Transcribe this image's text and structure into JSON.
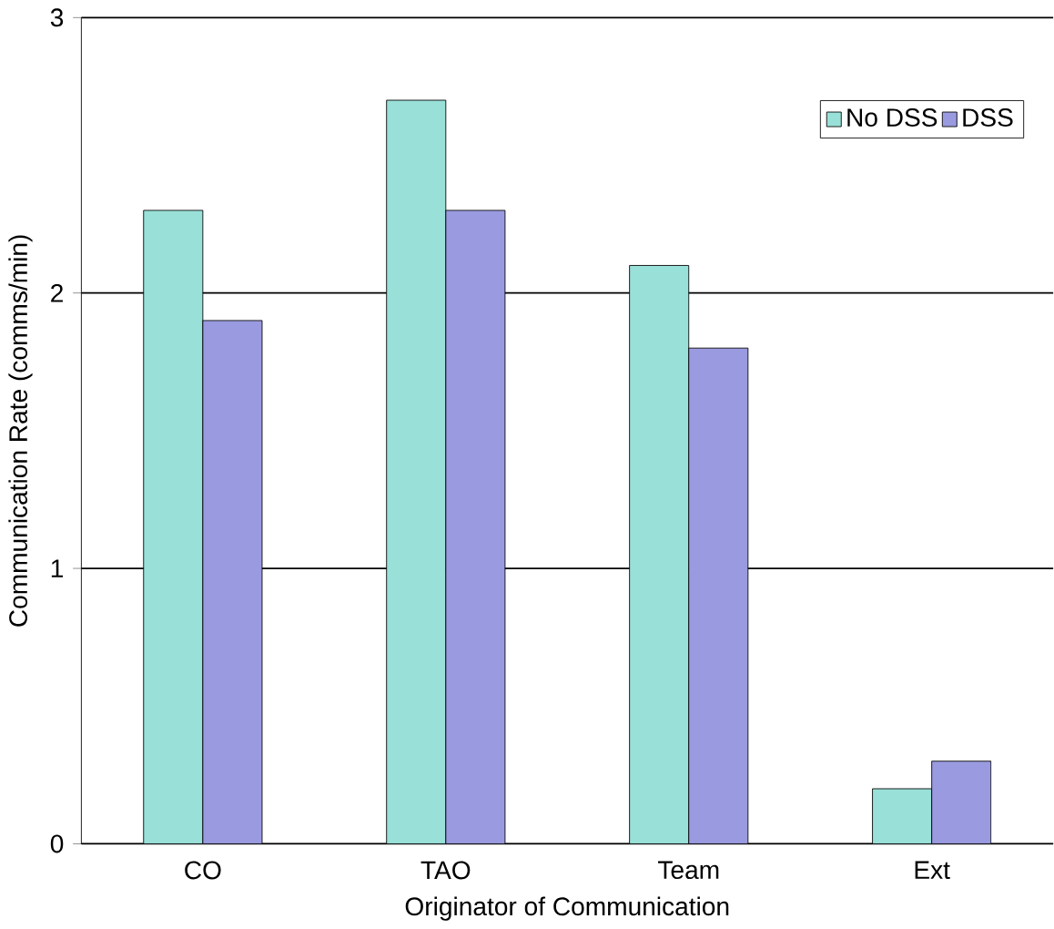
{
  "chart_data": {
    "type": "bar",
    "xlabel": "Originator of Communication",
    "ylabel": "Communication Rate (comms/min)",
    "categories": [
      "CO",
      "TAO",
      "Team",
      "Ext"
    ],
    "series": [
      {
        "name": "No DSS",
        "color": "#99e0d8",
        "values": [
          2.3,
          2.7,
          2.1,
          0.2
        ]
      },
      {
        "name": "DSS",
        "color": "#9a9ae0",
        "values": [
          1.9,
          2.3,
          1.8,
          0.3
        ]
      }
    ],
    "ylim": [
      0,
      3
    ],
    "yticks": [
      0,
      1,
      2,
      3
    ],
    "grid": "y",
    "legend": "top right"
  }
}
